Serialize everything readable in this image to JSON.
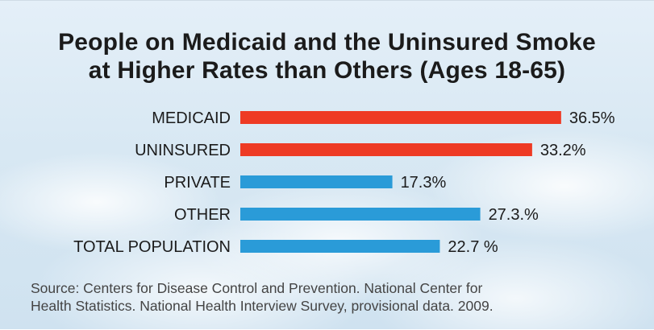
{
  "title": {
    "line1": "People on Medicaid and the Uninsured Smoke",
    "line2": "at Higher Rates than Others (Ages 18-65)"
  },
  "colors": {
    "highlight": "#ee3a24",
    "normal": "#2a9bd8",
    "text": "#1b1b1b"
  },
  "chart_data": {
    "type": "bar",
    "orientation": "horizontal",
    "title": "People on Medicaid and the Uninsured Smoke at Higher Rates than Others (Ages 18-65)",
    "categories": [
      "MEDICAID",
      "UNINSURED",
      "PRIVATE",
      "OTHER",
      "TOTAL POPULATION"
    ],
    "values": [
      36.5,
      33.2,
      17.3,
      27.3,
      22.7
    ],
    "value_labels": [
      "36.5%",
      "33.2%",
      "17.3%",
      "27.3.%",
      "22.7 %"
    ],
    "bar_colors": [
      "#ee3a24",
      "#ee3a24",
      "#2a9bd8",
      "#2a9bd8",
      "#2a9bd8"
    ],
    "xlim": [
      0,
      40
    ],
    "grid": false,
    "legend": "none"
  },
  "source": {
    "line1": "Source: Centers for Disease Control and Prevention. National Center for",
    "line2": "Health Statistics. National Health Interview Survey, provisional data. 2009."
  }
}
